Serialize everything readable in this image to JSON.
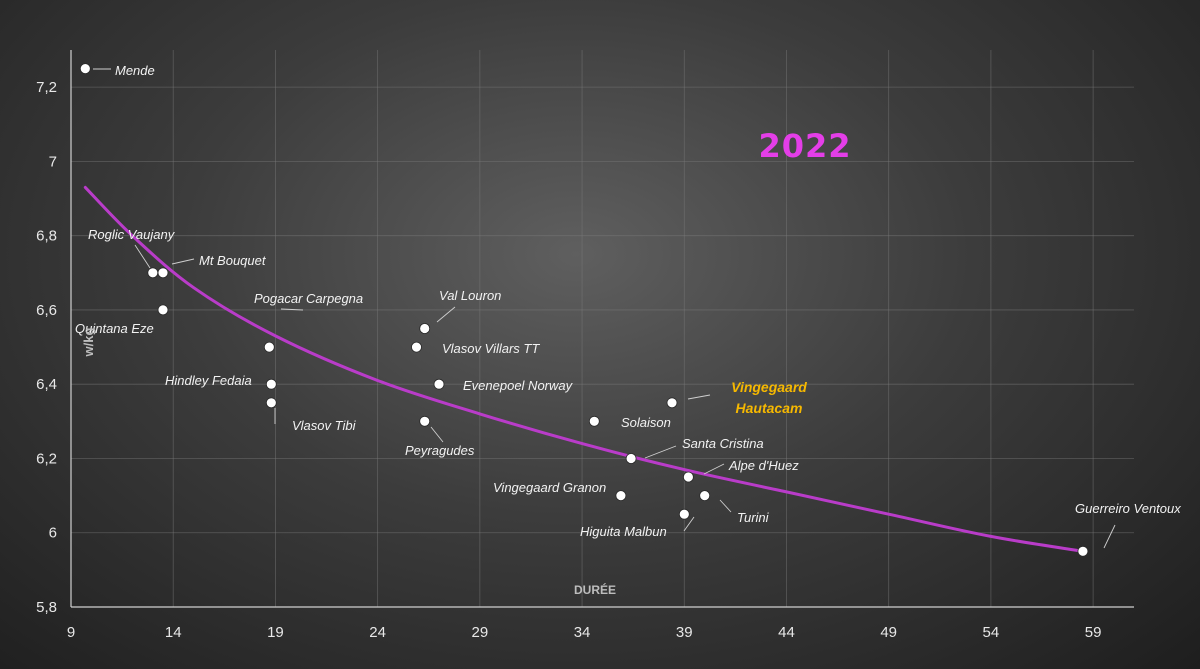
{
  "chart_data": {
    "type": "scatter",
    "title": "2022",
    "xlabel": "DURÉE",
    "ylabel": "w/kg",
    "xlim": [
      9,
      61
    ],
    "ylim": [
      5.8,
      7.3
    ],
    "x_ticks": [
      "9",
      "14",
      "19",
      "24",
      "29",
      "34",
      "39",
      "44",
      "49",
      "54",
      "59"
    ],
    "y_ticks": [
      "5,8",
      "6",
      "6,2",
      "6,4",
      "6,6",
      "6,8",
      "7",
      "7,2"
    ],
    "grid": true,
    "colors": {
      "trendline": "#b93cc9",
      "points": "#ffffff",
      "title": "#e43ee8",
      "highlight": "#f6b800"
    },
    "points": [
      {
        "label": "Mende",
        "x": 9.7,
        "y": 7.25
      },
      {
        "label": "Roglic Vaujany",
        "x": 13.0,
        "y": 6.7
      },
      {
        "label": "Mt Bouquet",
        "x": 13.5,
        "y": 6.7
      },
      {
        "label": "Quintana Eze",
        "x": 13.5,
        "y": 6.6
      },
      {
        "label": "Pogacar Carpegna",
        "x": 18.7,
        "y": 6.5
      },
      {
        "label": "Hindley Fedaia",
        "x": 18.8,
        "y": 6.4
      },
      {
        "label": "Vlasov Tibi",
        "x": 18.8,
        "y": 6.35
      },
      {
        "label": "Val Louron",
        "x": 26.3,
        "y": 6.55
      },
      {
        "label": "Vlasov Villars TT",
        "x": 25.9,
        "y": 6.5
      },
      {
        "label": "Evenepoel Norway",
        "x": 27.0,
        "y": 6.4
      },
      {
        "label": "Peyragudes",
        "x": 26.3,
        "y": 6.3
      },
      {
        "label": "Solaison",
        "x": 34.6,
        "y": 6.3
      },
      {
        "label": "Vingegaard Hautacam",
        "x": 38.4,
        "y": 6.35,
        "highlight": true
      },
      {
        "label": "Santa Cristina",
        "x": 36.4,
        "y": 6.2
      },
      {
        "label": "Alpe d'Huez",
        "x": 39.2,
        "y": 6.15
      },
      {
        "label": "Vingegaard Granon",
        "x": 35.9,
        "y": 6.1
      },
      {
        "label": "Turini",
        "x": 40.0,
        "y": 6.1
      },
      {
        "label": "Higuita Malbun",
        "x": 39.0,
        "y": 6.05
      },
      {
        "label": "Guerreiro Ventoux",
        "x": 58.5,
        "y": 5.95
      }
    ],
    "trendline": {
      "type": "power",
      "x": [
        9.7,
        12,
        15,
        19,
        24,
        29,
        34,
        39,
        44,
        49,
        54,
        58.5
      ],
      "y": [
        6.93,
        6.8,
        6.66,
        6.53,
        6.41,
        6.32,
        6.24,
        6.17,
        6.11,
        6.05,
        5.99,
        5.95
      ]
    }
  }
}
